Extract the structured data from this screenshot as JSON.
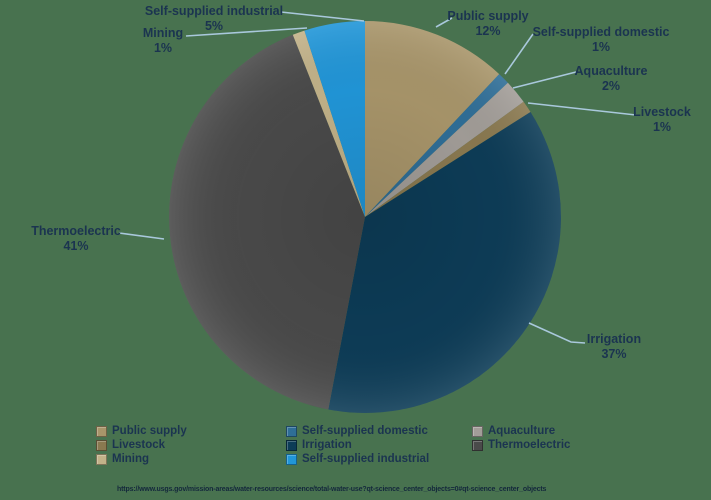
{
  "colors": {
    "background": "#48724f",
    "label_text": "#1b3450",
    "leader_line": "#a9c8dc",
    "url_text": "#14283c"
  },
  "chart_data": {
    "type": "pie",
    "title": "",
    "legend_position": "bottom",
    "direction": "clockwise",
    "start_angle_deg": 0,
    "categories": [
      "Public supply",
      "Self-supplied domestic",
      "Aquaculture",
      "Livestock",
      "Irrigation",
      "Thermoelectric",
      "Mining",
      "Self-supplied industrial"
    ],
    "values": [
      12,
      1,
      2,
      1,
      37,
      41,
      1,
      5
    ],
    "slices": [
      {
        "id": "public-supply",
        "label": "Public supply",
        "pct": "12%",
        "value": 12,
        "color": "#a8956a"
      },
      {
        "id": "self-supplied-domestic",
        "label": "Self-supplied domestic",
        "pct": "1%",
        "value": 1,
        "color": "#2f6e97"
      },
      {
        "id": "aquaculture",
        "label": "Aquaculture",
        "pct": "2%",
        "value": 2,
        "color": "#a29d98"
      },
      {
        "id": "livestock",
        "label": "Livestock",
        "pct": "1%",
        "value": 1,
        "color": "#8a7950"
      },
      {
        "id": "irrigation",
        "label": "Irrigation",
        "pct": "37%",
        "value": 37,
        "color": "#0d3c57"
      },
      {
        "id": "thermoelectric",
        "label": "Thermoelectric",
        "pct": "41%",
        "value": 41,
        "color": "#4a4a4a"
      },
      {
        "id": "mining",
        "label": "Mining",
        "pct": "1%",
        "value": 1,
        "color": "#c2b289"
      },
      {
        "id": "self-supplied-industrial",
        "label": "Self-supplied industrial",
        "pct": "5%",
        "value": 5,
        "color": "#2196d8"
      }
    ]
  },
  "legend": {
    "columns": [
      {
        "items": [
          {
            "label": "Public supply",
            "color": "#a8956a"
          },
          {
            "label": "Livestock",
            "color": "#8a7950"
          },
          {
            "label": "Mining",
            "color": "#c2b289"
          }
        ]
      },
      {
        "items": [
          {
            "label": "Self-supplied domestic",
            "color": "#2f6e97"
          },
          {
            "label": "Irrigation",
            "color": "#0d3c57"
          },
          {
            "label": "Self-supplied industrial",
            "color": "#2196d8"
          }
        ]
      },
      {
        "items": [
          {
            "label": "Aquaculture",
            "color": "#a29d98"
          },
          {
            "label": "Thermoelectric",
            "color": "#4a4a4a"
          }
        ]
      }
    ]
  },
  "footer": {
    "url": "https://www.usgs.gov/mission-areas/water-resources/science/total-water-use?qt-science_center_objects=0#qt-science_center_objects"
  }
}
